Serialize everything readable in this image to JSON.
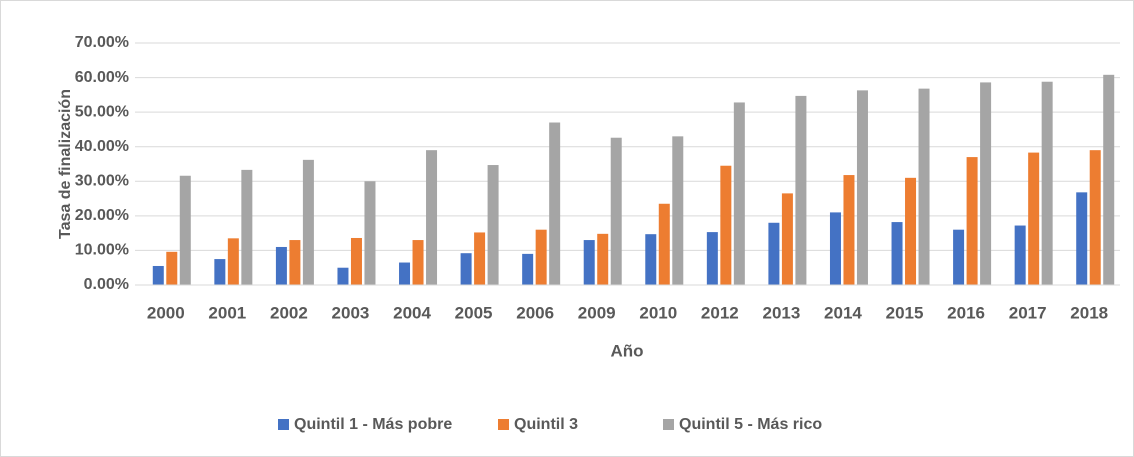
{
  "chart_data": {
    "type": "bar",
    "y_label": "Tasa de finalización",
    "x_label": "Año",
    "categories": [
      "2000",
      "2001",
      "2002",
      "2003",
      "2004",
      "2005",
      "2006",
      "2009",
      "2010",
      "2012",
      "2013",
      "2014",
      "2015",
      "2016",
      "2017",
      "2018"
    ],
    "series": [
      {
        "name": "Quintil 1 - Más pobre",
        "color": "#4472c4",
        "values": [
          5.5,
          7.5,
          11,
          5,
          6.5,
          9.2,
          9,
          13,
          14.7,
          15.3,
          18,
          21,
          18.2,
          16,
          17.2,
          26.8
        ]
      },
      {
        "name": "Quintil 3",
        "color": "#ed7d31",
        "values": [
          9.6,
          13.5,
          13,
          13.6,
          13,
          15.2,
          16,
          14.8,
          23.5,
          34.5,
          26.5,
          31.8,
          31,
          37,
          38.3,
          39
        ]
      },
      {
        "name": "Quintil 5 - Más rico",
        "color": "#a5a5a5",
        "values": [
          31.6,
          33.3,
          36.2,
          30,
          39,
          34.7,
          47,
          42.6,
          43,
          52.8,
          54.7,
          56.3,
          56.8,
          58.6,
          58.8,
          60.8
        ]
      }
    ],
    "ylim": [
      0,
      70
    ],
    "yticks": [
      {
        "value": 0,
        "label": "0.00%"
      },
      {
        "value": 10,
        "label": "10.00%"
      },
      {
        "value": 20,
        "label": "20.00%"
      },
      {
        "value": 30,
        "label": "30.00%"
      },
      {
        "value": 40,
        "label": "40.00%"
      },
      {
        "value": 50,
        "label": "50.00%"
      },
      {
        "value": 60,
        "label": "60.00%"
      },
      {
        "value": 70,
        "label": "70.00%"
      }
    ],
    "grid": true,
    "legend": "bottom"
  }
}
